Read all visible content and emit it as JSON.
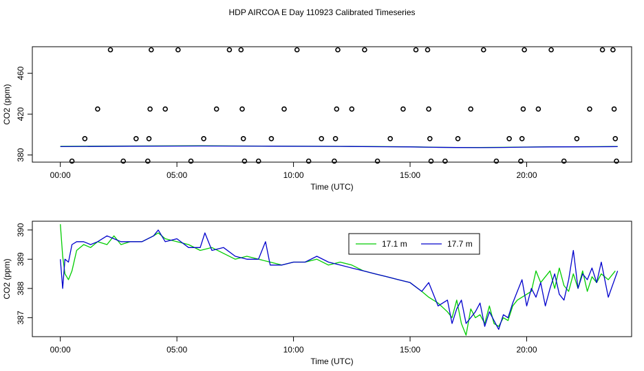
{
  "title": "HDP AIRCOA E  Day 110923  Calibrated Timeseries",
  "colors": {
    "series_a": "#00cc00",
    "series_b": "#0000cc",
    "axis": "#000000"
  },
  "chart_data": [
    {
      "type": "scatter+line",
      "xlabel": "Time (UTC)",
      "ylabel": "CO2 (ppm)",
      "xlim": [
        -1.2,
        24.5
      ],
      "ylim": [
        373,
        486
      ],
      "x_ticks": [
        0,
        5,
        10,
        15,
        20
      ],
      "x_tick_labels": [
        "00:00",
        "05:00",
        "10:00",
        "15:00",
        "20:00"
      ],
      "y_ticks": [
        380,
        420,
        460
      ],
      "y_tick_labels": [
        "380",
        "420",
        "460"
      ],
      "grid": false,
      "calibration_points": {
        "x": [
          0.5,
          1.05,
          1.6,
          2.15,
          2.7,
          3.25,
          3.75,
          3.8,
          3.85,
          3.9,
          4.5,
          5.05,
          5.6,
          6.15,
          6.7,
          7.25,
          7.75,
          7.8,
          7.85,
          7.9,
          8.5,
          9.05,
          9.6,
          10.15,
          10.65,
          11.2,
          11.75,
          11.8,
          11.85,
          11.9,
          12.5,
          13.05,
          13.6,
          14.15,
          14.7,
          15.25,
          15.75,
          15.8,
          15.85,
          15.9,
          16.5,
          17.05,
          17.6,
          18.15,
          18.7,
          19.25,
          19.75,
          19.8,
          19.85,
          19.9,
          20.5,
          21.05,
          21.6,
          22.15,
          22.7,
          23.25,
          23.7,
          23.75,
          23.8,
          23.85
        ],
        "y": [
          374,
          396,
          425,
          483,
          374,
          396,
          374,
          396,
          425,
          483,
          425,
          483,
          374,
          396,
          425,
          483,
          483,
          425,
          396,
          374,
          374,
          396,
          425,
          483,
          374,
          396,
          374,
          396,
          425,
          483,
          425,
          483,
          374,
          396,
          425,
          483,
          483,
          425,
          396,
          374,
          374,
          396,
          425,
          483,
          374,
          396,
          374,
          396,
          425,
          483,
          425,
          483,
          374,
          396,
          425,
          483,
          483,
          425,
          396,
          374
        ]
      },
      "series": [
        {
          "name": "17.1 m",
          "x": [
            0,
            3,
            6,
            9,
            12,
            14,
            15,
            16,
            17,
            18,
            19,
            20,
            21,
            22,
            23,
            23.9
          ],
          "y": [
            388.5,
            388.8,
            389,
            388.7,
            388.5,
            388.2,
            388,
            387.6,
            387.4,
            387.3,
            387.5,
            387.8,
            388,
            388.1,
            388.2,
            388.3
          ]
        },
        {
          "name": "17.7 m",
          "x": [
            0,
            3,
            6,
            9,
            12,
            14,
            15,
            16,
            17,
            18,
            19,
            20,
            21,
            22,
            23,
            23.9
          ],
          "y": [
            388.2,
            388.6,
            388.8,
            388.6,
            388.4,
            388.1,
            387.9,
            387.5,
            387.3,
            387.2,
            387.4,
            387.7,
            387.9,
            388,
            388.1,
            388.2
          ]
        }
      ]
    },
    {
      "type": "line",
      "xlabel": "Time (UTC)",
      "ylabel": "CO2 (ppm)",
      "xlim": [
        -1.2,
        24.5
      ],
      "ylim": [
        386.35,
        390.3
      ],
      "x_ticks": [
        0,
        5,
        10,
        15,
        20
      ],
      "x_tick_labels": [
        "00:00",
        "05:00",
        "10:00",
        "15:00",
        "20:00"
      ],
      "y_ticks": [
        387,
        388,
        389,
        390
      ],
      "y_tick_labels": [
        "387",
        "388",
        "389",
        "390"
      ],
      "legend": {
        "placement": "top-right",
        "entries": [
          "17.1 m",
          "17.7 m"
        ]
      },
      "grid": false,
      "series": [
        {
          "name": "17.1 m",
          "x": [
            0,
            0.1,
            0.2,
            0.35,
            0.5,
            0.7,
            1,
            1.3,
            1.6,
            2,
            2.3,
            2.6,
            3,
            3.5,
            4,
            4.2,
            4.5,
            5,
            5.5,
            6,
            6.5,
            7,
            7.5,
            8,
            8.5,
            9,
            9.5,
            10,
            10.5,
            11,
            11.5,
            12,
            12.5,
            13,
            13.5,
            14,
            14.5,
            15,
            15.5,
            15.8,
            16.2,
            16.6,
            16.8,
            17.0,
            17.2,
            17.4,
            17.6,
            17.8,
            18.0,
            18.2,
            18.4,
            18.6,
            18.8,
            19.0,
            19.2,
            19.4,
            19.6,
            19.8,
            20.0,
            20.2,
            20.4,
            20.6,
            20.8,
            21.0,
            21.2,
            21.4,
            21.6,
            21.8,
            22.0,
            22.2,
            22.4,
            22.6,
            22.8,
            23.0,
            23.2,
            23.5,
            23.8
          ],
          "y": [
            390.2,
            389.1,
            388.5,
            388.3,
            388.6,
            389.3,
            389.5,
            389.4,
            389.6,
            389.5,
            389.8,
            389.5,
            389.6,
            389.6,
            389.8,
            389.9,
            389.7,
            389.6,
            389.5,
            389.3,
            389.4,
            389.2,
            389.0,
            389.1,
            389.0,
            388.9,
            388.8,
            388.9,
            388.9,
            389.0,
            388.8,
            388.9,
            388.8,
            388.6,
            388.5,
            388.4,
            388.3,
            388.2,
            387.9,
            387.7,
            387.5,
            387.2,
            387.0,
            387.6,
            386.8,
            386.4,
            387.3,
            387.0,
            387.1,
            386.8,
            387.4,
            386.8,
            386.7,
            387.0,
            386.9,
            387.4,
            387.6,
            387.7,
            387.8,
            387.9,
            388.6,
            388.2,
            388.4,
            388.6,
            388.0,
            388.7,
            388.1,
            387.9,
            388.5,
            388.0,
            388.6,
            387.9,
            388.4,
            388.2,
            388.5,
            388.3,
            388.6
          ]
        },
        {
          "name": "17.7 m",
          "x": [
            0,
            0.1,
            0.2,
            0.35,
            0.5,
            0.7,
            1,
            1.3,
            1.6,
            2,
            2.3,
            2.6,
            3,
            3.5,
            4,
            4.2,
            4.5,
            5,
            5.5,
            6,
            6.2,
            6.5,
            7,
            7.5,
            8,
            8.5,
            8.8,
            9,
            9.5,
            10,
            10.5,
            11,
            11.5,
            12,
            12.5,
            13,
            13.5,
            14,
            14.5,
            15,
            15.5,
            15.8,
            16.2,
            16.6,
            16.8,
            17.0,
            17.2,
            17.4,
            17.6,
            17.8,
            18.0,
            18.2,
            18.4,
            18.6,
            18.8,
            19.0,
            19.2,
            19.4,
            19.6,
            19.8,
            20.0,
            20.2,
            20.4,
            20.6,
            20.8,
            21.0,
            21.2,
            21.4,
            21.6,
            21.8,
            22.0,
            22.2,
            22.4,
            22.6,
            22.8,
            23.0,
            23.2,
            23.5,
            23.9
          ],
          "y": [
            389.0,
            388.0,
            389.0,
            388.9,
            389.5,
            389.6,
            389.6,
            389.5,
            389.6,
            389.8,
            389.7,
            389.6,
            389.6,
            389.6,
            389.8,
            390.0,
            389.6,
            389.7,
            389.4,
            389.4,
            389.9,
            389.3,
            389.4,
            389.1,
            389.0,
            389.0,
            389.6,
            388.8,
            388.8,
            388.9,
            388.9,
            389.1,
            388.9,
            388.8,
            388.7,
            388.6,
            388.5,
            388.4,
            388.3,
            388.2,
            387.9,
            388.2,
            387.4,
            387.6,
            386.8,
            387.3,
            387.6,
            386.8,
            387.0,
            387.2,
            387.5,
            386.7,
            387.2,
            386.9,
            386.6,
            387.1,
            387.0,
            387.5,
            387.9,
            388.3,
            387.4,
            388.0,
            387.7,
            388.2,
            387.4,
            388.0,
            388.5,
            387.8,
            387.6,
            388.3,
            389.3,
            388.0,
            388.5,
            388.3,
            388.7,
            388.2,
            388.9,
            387.7,
            388.6
          ]
        }
      ]
    }
  ]
}
